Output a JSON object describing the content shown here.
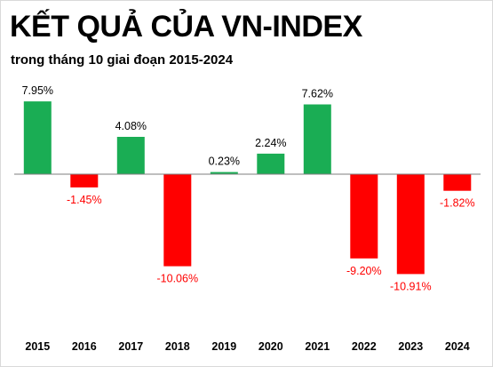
{
  "title": "KẾT QUẢ CỦA VN-INDEX",
  "subtitle": "trong tháng 10 giai đoạn 2015-2024",
  "colors": {
    "positive": "#1aad54",
    "negative": "#ff0000",
    "axis": "#7f7f7f",
    "positive_text": "#000000",
    "negative_text": "#ff0000"
  },
  "chart_data": {
    "type": "bar",
    "title": "KẾT QUẢ CỦA VN-INDEX",
    "subtitle": "trong tháng 10 giai đoạn 2015-2024",
    "xlabel": "",
    "ylabel": "",
    "categories": [
      "2015",
      "2016",
      "2017",
      "2018",
      "2019",
      "2020",
      "2021",
      "2022",
      "2023",
      "2024"
    ],
    "values": [
      7.95,
      -1.45,
      4.08,
      -10.06,
      0.23,
      2.24,
      7.62,
      -9.2,
      -10.91,
      -1.82
    ],
    "value_labels": [
      "7.95%",
      "-1.45%",
      "4.08%",
      "-10.06%",
      "0.23%",
      "2.24%",
      "7.62%",
      "-9.20%",
      "-10.91%",
      "-1.82%"
    ],
    "ylim": [
      -12,
      9
    ],
    "grid": false,
    "legend": "none"
  }
}
